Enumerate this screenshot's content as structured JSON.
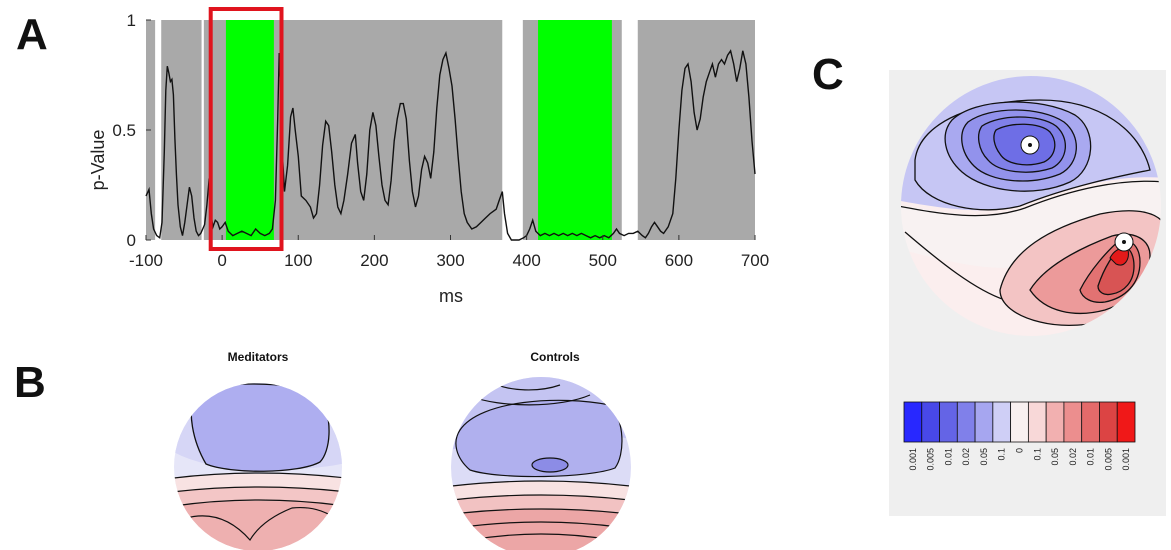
{
  "panels": {
    "a_label": "A",
    "b_label": "B",
    "c_label": "C"
  },
  "chart_data": {
    "type": "line",
    "title": "",
    "xlabel": "ms",
    "ylabel": "p-Value",
    "xlim": [
      -100,
      700
    ],
    "ylim": [
      0,
      1
    ],
    "x_ticks": [
      -100,
      0,
      100,
      200,
      300,
      400,
      500,
      600,
      700
    ],
    "y_ticks": [
      0,
      0.5,
      1
    ],
    "y_tick_labels": [
      "0",
      "0.5",
      "1"
    ],
    "background_color": "#a9a9a9",
    "significant_color": "#00ff00",
    "highlight_box_color": "#e0141e",
    "white_bands_ms": [
      [
        -88,
        -80
      ],
      [
        -27,
        -24
      ],
      [
        368,
        395
      ],
      [
        525,
        546
      ]
    ],
    "significant_windows_ms": [
      [
        5,
        68
      ],
      [
        415,
        512
      ]
    ],
    "highlight_window_ms": [
      -15,
      78
    ],
    "series": [
      {
        "values": [
          [
            -100,
            0.2
          ],
          [
            -96,
            0.23
          ],
          [
            -93,
            0.12
          ],
          [
            -90,
            0.05
          ],
          [
            -86,
            0.02
          ],
          [
            -82,
            0.01
          ],
          [
            -79,
            0.08
          ],
          [
            -76,
            0.4
          ],
          [
            -74,
            0.68
          ],
          [
            -72,
            0.79
          ],
          [
            -70,
            0.76
          ],
          [
            -68,
            0.72
          ],
          [
            -66,
            0.73
          ],
          [
            -64,
            0.66
          ],
          [
            -62,
            0.46
          ],
          [
            -60,
            0.3
          ],
          [
            -58,
            0.16
          ],
          [
            -55,
            0.06
          ],
          [
            -52,
            0.02
          ],
          [
            -49,
            0.08
          ],
          [
            -46,
            0.16
          ],
          [
            -43,
            0.24
          ],
          [
            -40,
            0.2
          ],
          [
            -37,
            0.1
          ],
          [
            -34,
            0.04
          ],
          [
            -31,
            0.02
          ],
          [
            -28,
            0.03
          ],
          [
            -23,
            0.07
          ],
          [
            -20,
            0.16
          ],
          [
            -17,
            0.28
          ],
          [
            -15,
            0.12
          ],
          [
            -12,
            0.06
          ],
          [
            -9,
            0.09
          ],
          [
            -6,
            0.08
          ],
          [
            -3,
            0.05
          ],
          [
            0,
            0.06
          ],
          [
            4,
            0.08
          ],
          [
            8,
            0.04
          ],
          [
            14,
            0.02
          ],
          [
            20,
            0.03
          ],
          [
            26,
            0.04
          ],
          [
            32,
            0.03
          ],
          [
            38,
            0.02
          ],
          [
            44,
            0.05
          ],
          [
            50,
            0.03
          ],
          [
            56,
            0.02
          ],
          [
            62,
            0.03
          ],
          [
            66,
            0.05
          ],
          [
            70,
            0.18
          ],
          [
            73,
            0.55
          ],
          [
            75,
            0.85
          ],
          [
            77,
            0.68
          ],
          [
            79,
            0.4
          ],
          [
            82,
            0.22
          ],
          [
            86,
            0.34
          ],
          [
            90,
            0.56
          ],
          [
            93,
            0.6
          ],
          [
            96,
            0.5
          ],
          [
            100,
            0.38
          ],
          [
            104,
            0.2
          ],
          [
            110,
            0.18
          ],
          [
            116,
            0.15
          ],
          [
            120,
            0.1
          ],
          [
            124,
            0.12
          ],
          [
            128,
            0.25
          ],
          [
            132,
            0.43
          ],
          [
            136,
            0.54
          ],
          [
            140,
            0.52
          ],
          [
            144,
            0.4
          ],
          [
            148,
            0.25
          ],
          [
            152,
            0.15
          ],
          [
            156,
            0.12
          ],
          [
            160,
            0.18
          ],
          [
            165,
            0.3
          ],
          [
            170,
            0.44
          ],
          [
            175,
            0.48
          ],
          [
            178,
            0.35
          ],
          [
            182,
            0.22
          ],
          [
            186,
            0.18
          ],
          [
            190,
            0.3
          ],
          [
            194,
            0.5
          ],
          [
            198,
            0.58
          ],
          [
            202,
            0.52
          ],
          [
            206,
            0.38
          ],
          [
            210,
            0.25
          ],
          [
            214,
            0.18
          ],
          [
            218,
            0.16
          ],
          [
            222,
            0.27
          ],
          [
            226,
            0.45
          ],
          [
            230,
            0.55
          ],
          [
            234,
            0.62
          ],
          [
            238,
            0.62
          ],
          [
            242,
            0.55
          ],
          [
            246,
            0.36
          ],
          [
            250,
            0.22
          ],
          [
            254,
            0.15
          ],
          [
            258,
            0.2
          ],
          [
            262,
            0.32
          ],
          [
            266,
            0.38
          ],
          [
            270,
            0.35
          ],
          [
            274,
            0.28
          ],
          [
            278,
            0.4
          ],
          [
            282,
            0.6
          ],
          [
            286,
            0.75
          ],
          [
            290,
            0.82
          ],
          [
            294,
            0.85
          ],
          [
            298,
            0.78
          ],
          [
            302,
            0.7
          ],
          [
            306,
            0.55
          ],
          [
            310,
            0.38
          ],
          [
            314,
            0.22
          ],
          [
            318,
            0.12
          ],
          [
            322,
            0.08
          ],
          [
            328,
            0.05
          ],
          [
            334,
            0.06
          ],
          [
            340,
            0.08
          ],
          [
            346,
            0.1
          ],
          [
            352,
            0.12
          ],
          [
            356,
            0.13
          ],
          [
            360,
            0.14
          ],
          [
            364,
            0.18
          ],
          [
            368,
            0.22
          ],
          [
            371,
            0.12
          ],
          [
            375,
            0.03
          ],
          [
            380,
            0.0
          ],
          [
            390,
            0.0
          ],
          [
            396,
            0.01
          ],
          [
            400,
            0.02
          ],
          [
            404,
            0.05
          ],
          [
            408,
            0.09
          ],
          [
            412,
            0.04
          ],
          [
            418,
            0.02
          ],
          [
            424,
            0.03
          ],
          [
            430,
            0.02
          ],
          [
            436,
            0.03
          ],
          [
            442,
            0.02
          ],
          [
            448,
            0.03
          ],
          [
            454,
            0.02
          ],
          [
            460,
            0.03
          ],
          [
            466,
            0.02
          ],
          [
            472,
            0.03
          ],
          [
            478,
            0.02
          ],
          [
            484,
            0.01
          ],
          [
            490,
            0.02
          ],
          [
            496,
            0.01
          ],
          [
            502,
            0.02
          ],
          [
            508,
            0.01
          ],
          [
            514,
            0.03
          ],
          [
            518,
            0.05
          ],
          [
            522,
            0.03
          ],
          [
            528,
            0.02
          ],
          [
            534,
            0.03
          ],
          [
            540,
            0.03
          ],
          [
            546,
            0.04
          ],
          [
            552,
            0.02
          ],
          [
            556,
            0.01
          ],
          [
            560,
            0.03
          ],
          [
            564,
            0.06
          ],
          [
            568,
            0.08
          ],
          [
            572,
            0.06
          ],
          [
            576,
            0.04
          ],
          [
            580,
            0.03
          ],
          [
            586,
            0.06
          ],
          [
            592,
            0.12
          ],
          [
            596,
            0.28
          ],
          [
            600,
            0.5
          ],
          [
            604,
            0.68
          ],
          [
            608,
            0.78
          ],
          [
            612,
            0.8
          ],
          [
            616,
            0.72
          ],
          [
            620,
            0.58
          ],
          [
            624,
            0.5
          ],
          [
            628,
            0.55
          ],
          [
            632,
            0.65
          ],
          [
            636,
            0.72
          ],
          [
            640,
            0.76
          ],
          [
            644,
            0.8
          ],
          [
            648,
            0.74
          ],
          [
            652,
            0.8
          ],
          [
            656,
            0.82
          ],
          [
            660,
            0.8
          ],
          [
            664,
            0.84
          ],
          [
            668,
            0.86
          ],
          [
            672,
            0.8
          ],
          [
            676,
            0.72
          ],
          [
            680,
            0.78
          ],
          [
            684,
            0.86
          ],
          [
            688,
            0.8
          ],
          [
            692,
            0.65
          ],
          [
            696,
            0.45
          ],
          [
            700,
            0.3
          ]
        ]
      }
    ]
  },
  "topomaps": {
    "meditators_title": "Meditators",
    "controls_title": "Controls"
  },
  "colorbar": {
    "labels": [
      "0.001",
      "0.005",
      "0.01",
      "0.02",
      "0.05",
      "0.1",
      "0",
      "0.1",
      "0.05",
      "0.02",
      "0.01",
      "0.005",
      "0.001"
    ],
    "colors": [
      "#2828ff",
      "#4848e8",
      "#6464e6",
      "#8080ea",
      "#a6a6f0",
      "#cfcff6",
      "#f8f0f0",
      "#f8d8d8",
      "#f2b0b0",
      "#ec8e8e",
      "#e46a6a",
      "#dc4444",
      "#f01818"
    ]
  }
}
